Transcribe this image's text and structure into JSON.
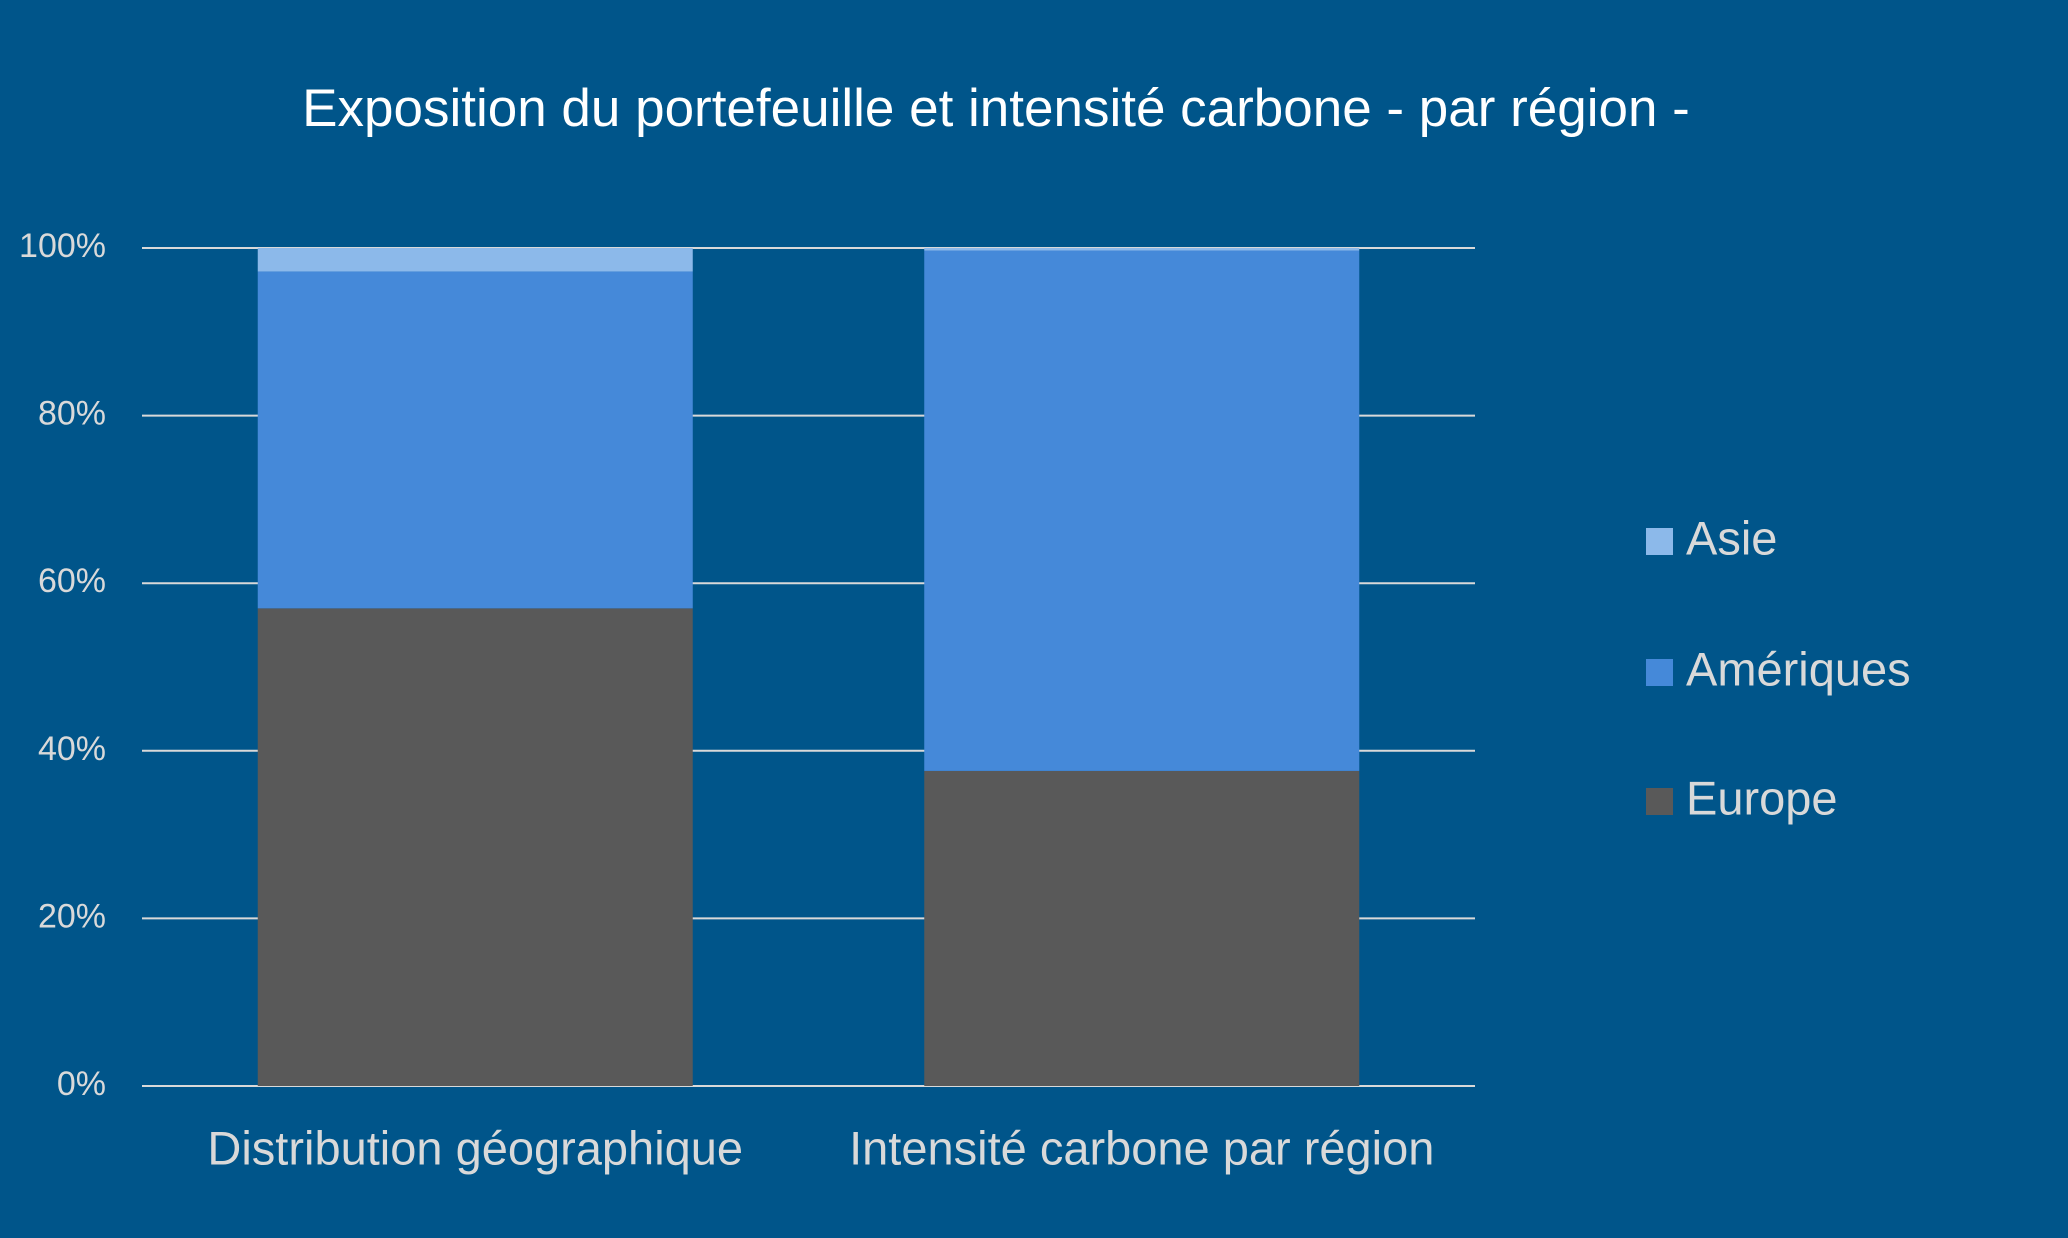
{
  "chart_data": {
    "type": "stacked_bar",
    "title": "Exposition du portefeuille et intensité carbone - par région -",
    "categories": [
      "Distribution géographique",
      "Intensité carbone par région"
    ],
    "series": [
      {
        "name": "Europe",
        "color": "#595959",
        "values": [
          57,
          37.6
        ]
      },
      {
        "name": "Amériques",
        "color": "#4589d9",
        "values": [
          40.2,
          62.1
        ]
      },
      {
        "name": "Asie",
        "color": "#8cb9ea",
        "values": [
          2.8,
          0.3
        ]
      }
    ],
    "ylim": [
      0,
      100
    ],
    "yticks": [
      {
        "value": 0,
        "label": "0%"
      },
      {
        "value": 20,
        "label": "20%"
      },
      {
        "value": 40,
        "label": "40%"
      },
      {
        "value": 60,
        "label": "60%"
      },
      {
        "value": 80,
        "label": "80%"
      },
      {
        "value": 100,
        "label": "100%"
      }
    ],
    "grid": true,
    "legend": "right"
  }
}
